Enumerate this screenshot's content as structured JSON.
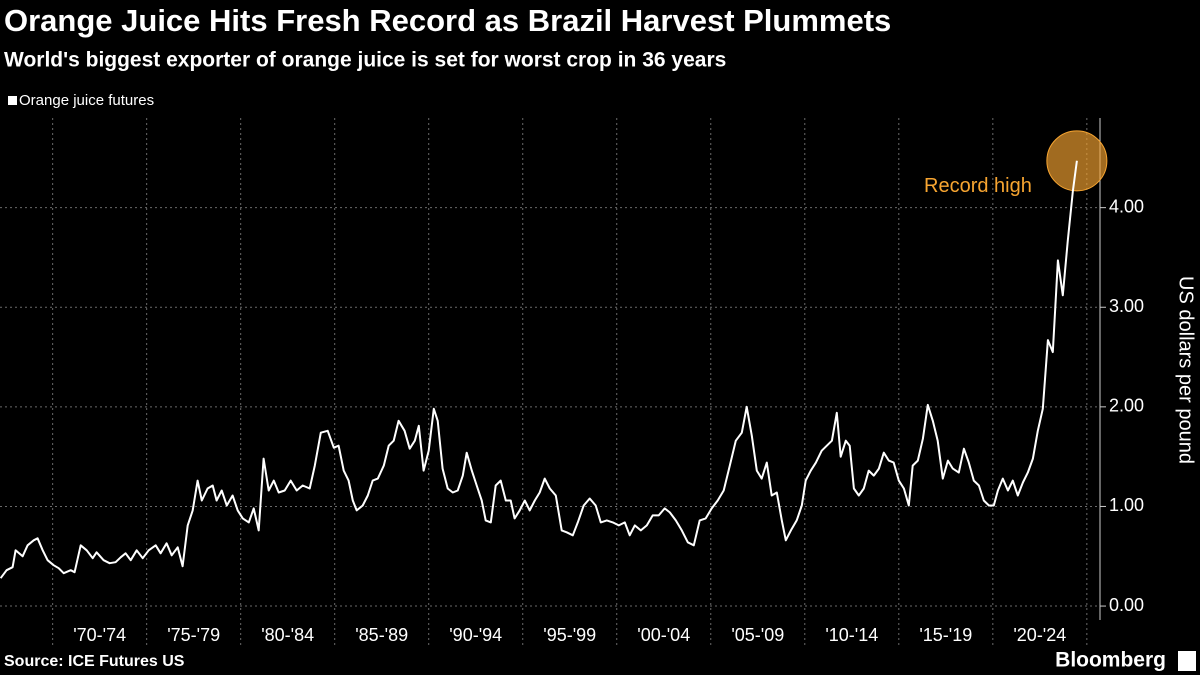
{
  "chart_data": {
    "type": "line",
    "title": "Orange Juice Hits Fresh Record as Brazil Harvest Plummets",
    "subtitle": "World's biggest exporter of orange juice is set for worst crop in 36 years",
    "y_label": "US dollars per pound",
    "source": "Source: ICE Futures US",
    "brand": "Bloomberg",
    "annotation": {
      "text": "Record high",
      "color": "#f7a531"
    },
    "xlim": [
      1967.2,
      2025.7
    ],
    "xticks": [
      {
        "value": 1972.5,
        "label": "'70-'74"
      },
      {
        "value": 1977.5,
        "label": "'75-'79"
      },
      {
        "value": 1982.5,
        "label": "'80-'84"
      },
      {
        "value": 1987.5,
        "label": "'85-'89"
      },
      {
        "value": 1992.5,
        "label": "'90-'94"
      },
      {
        "value": 1997.5,
        "label": "'95-'99"
      },
      {
        "value": 2002.5,
        "label": "'00-'04"
      },
      {
        "value": 2007.5,
        "label": "'05-'09"
      },
      {
        "value": 2012.5,
        "label": "'10-'14"
      },
      {
        "value": 2017.5,
        "label": "'15-'19"
      },
      {
        "value": 2022.5,
        "label": "'20-'24"
      }
    ],
    "ylim": [
      -0.14,
      4.9
    ],
    "yticks": [
      {
        "value": 0,
        "label": "0.00"
      },
      {
        "value": 1,
        "label": "1.00"
      },
      {
        "value": 2,
        "label": "2.00"
      },
      {
        "value": 3,
        "label": "3.00"
      },
      {
        "value": 4,
        "label": "4.00"
      }
    ],
    "grid": true,
    "legend": "top-left",
    "x": [
      1967.23,
      1967.55,
      1967.87,
      1968.03,
      1968.4,
      1968.67,
      1968.99,
      1969.2,
      1969.47,
      1969.73,
      1970.05,
      1970.32,
      1970.59,
      1970.96,
      1971.17,
      1971.49,
      1971.81,
      1972.13,
      1972.34,
      1972.71,
      1973.03,
      1973.35,
      1973.62,
      1973.88,
      1974.15,
      1974.47,
      1974.79,
      1975.11,
      1975.48,
      1975.74,
      1976.06,
      1976.33,
      1976.65,
      1976.91,
      1977.18,
      1977.45,
      1977.71,
      1977.93,
      1978.24,
      1978.51,
      1978.72,
      1978.99,
      1979.26,
      1979.57,
      1979.84,
      1980.11,
      1980.43,
      1980.69,
      1980.96,
      1981.22,
      1981.49,
      1981.76,
      1982.02,
      1982.34,
      1982.66,
      1982.98,
      1983.3,
      1983.67,
      1983.94,
      1984.26,
      1984.63,
      1984.95,
      1985.21,
      1985.48,
      1985.74,
      1985.96,
      1986.17,
      1986.49,
      1986.76,
      1987.02,
      1987.29,
      1987.61,
      1987.87,
      1988.14,
      1988.4,
      1988.72,
      1988.99,
      1989.26,
      1989.47,
      1989.73,
      1990.0,
      1990.27,
      1990.48,
      1990.74,
      1991.01,
      1991.28,
      1991.54,
      1991.81,
      1992.02,
      1992.29,
      1992.55,
      1992.82,
      1993.03,
      1993.3,
      1993.56,
      1993.83,
      1994.1,
      1994.36,
      1994.57,
      1994.84,
      1995.11,
      1995.37,
      1995.64,
      1995.9,
      1996.17,
      1996.44,
      1996.76,
      1997.07,
      1997.34,
      1997.66,
      1997.93,
      1998.24,
      1998.56,
      1998.88,
      1999.15,
      1999.47,
      1999.79,
      2000.11,
      2000.43,
      2000.69,
      2000.96,
      2001.28,
      2001.6,
      2001.91,
      2002.23,
      2002.55,
      2002.82,
      2003.14,
      2003.46,
      2003.78,
      2004.1,
      2004.41,
      2004.73,
      2005.05,
      2005.37,
      2005.69,
      2006.01,
      2006.33,
      2006.65,
      2006.91,
      2007.18,
      2007.45,
      2007.71,
      2007.98,
      2008.24,
      2008.51,
      2008.78,
      2008.99,
      2009.26,
      2009.57,
      2009.84,
      2010.05,
      2010.32,
      2010.59,
      2010.9,
      2011.17,
      2011.44,
      2011.7,
      2011.91,
      2012.18,
      2012.39,
      2012.61,
      2012.87,
      2013.14,
      2013.4,
      2013.67,
      2013.94,
      2014.2,
      2014.47,
      2014.73,
      2015.0,
      2015.27,
      2015.53,
      2015.74,
      2016.01,
      2016.28,
      2016.54,
      2016.81,
      2017.07,
      2017.34,
      2017.61,
      2017.87,
      2018.19,
      2018.46,
      2018.72,
      2018.99,
      2019.26,
      2019.52,
      2019.79,
      2020.05,
      2020.27,
      2020.53,
      2020.8,
      2021.06,
      2021.33,
      2021.6,
      2021.86,
      2022.13,
      2022.39,
      2022.66,
      2022.93,
      2023.19,
      2023.46,
      2023.72,
      2023.99,
      2024.26,
      2024.47
    ],
    "series": [
      {
        "name": "Orange juice futures",
        "color": "#ffffff",
        "values": [
          0.28,
          0.36,
          0.39,
          0.56,
          0.5,
          0.61,
          0.66,
          0.68,
          0.56,
          0.46,
          0.41,
          0.38,
          0.33,
          0.36,
          0.34,
          0.61,
          0.56,
          0.48,
          0.54,
          0.46,
          0.43,
          0.44,
          0.49,
          0.53,
          0.46,
          0.56,
          0.48,
          0.56,
          0.61,
          0.53,
          0.63,
          0.51,
          0.59,
          0.4,
          0.81,
          0.96,
          1.26,
          1.06,
          1.18,
          1.21,
          1.06,
          1.16,
          1.01,
          1.11,
          0.96,
          0.88,
          0.84,
          0.98,
          0.76,
          1.48,
          1.16,
          1.26,
          1.14,
          1.16,
          1.26,
          1.16,
          1.21,
          1.18,
          1.41,
          1.74,
          1.76,
          1.59,
          1.61,
          1.36,
          1.26,
          1.06,
          0.96,
          1.01,
          1.11,
          1.26,
          1.28,
          1.41,
          1.61,
          1.66,
          1.86,
          1.76,
          1.58,
          1.66,
          1.81,
          1.36,
          1.56,
          1.98,
          1.86,
          1.38,
          1.18,
          1.14,
          1.16,
          1.31,
          1.54,
          1.36,
          1.21,
          1.06,
          0.86,
          0.84,
          1.21,
          1.26,
          1.06,
          1.06,
          0.88,
          0.96,
          1.06,
          0.96,
          1.06,
          1.14,
          1.28,
          1.18,
          1.11,
          0.76,
          0.74,
          0.71,
          0.84,
          1.01,
          1.08,
          1.01,
          0.84,
          0.86,
          0.84,
          0.81,
          0.84,
          0.71,
          0.81,
          0.76,
          0.81,
          0.91,
          0.91,
          0.98,
          0.94,
          0.86,
          0.76,
          0.64,
          0.61,
          0.86,
          0.88,
          0.98,
          1.06,
          1.16,
          1.41,
          1.66,
          1.74,
          2.0,
          1.71,
          1.36,
          1.28,
          1.44,
          1.11,
          1.14,
          0.86,
          0.66,
          0.76,
          0.86,
          1.01,
          1.26,
          1.36,
          1.44,
          1.56,
          1.61,
          1.66,
          1.94,
          1.5,
          1.66,
          1.61,
          1.18,
          1.11,
          1.18,
          1.36,
          1.31,
          1.38,
          1.54,
          1.46,
          1.44,
          1.26,
          1.18,
          1.01,
          1.41,
          1.46,
          1.68,
          2.02,
          1.86,
          1.66,
          1.28,
          1.46,
          1.38,
          1.34,
          1.58,
          1.44,
          1.26,
          1.21,
          1.06,
          1.01,
          1.01,
          1.16,
          1.28,
          1.16,
          1.26,
          1.11,
          1.24,
          1.34,
          1.48,
          1.76,
          1.98,
          2.67,
          2.55,
          3.47,
          3.12,
          3.67,
          4.17,
          4.47
        ]
      }
    ]
  }
}
